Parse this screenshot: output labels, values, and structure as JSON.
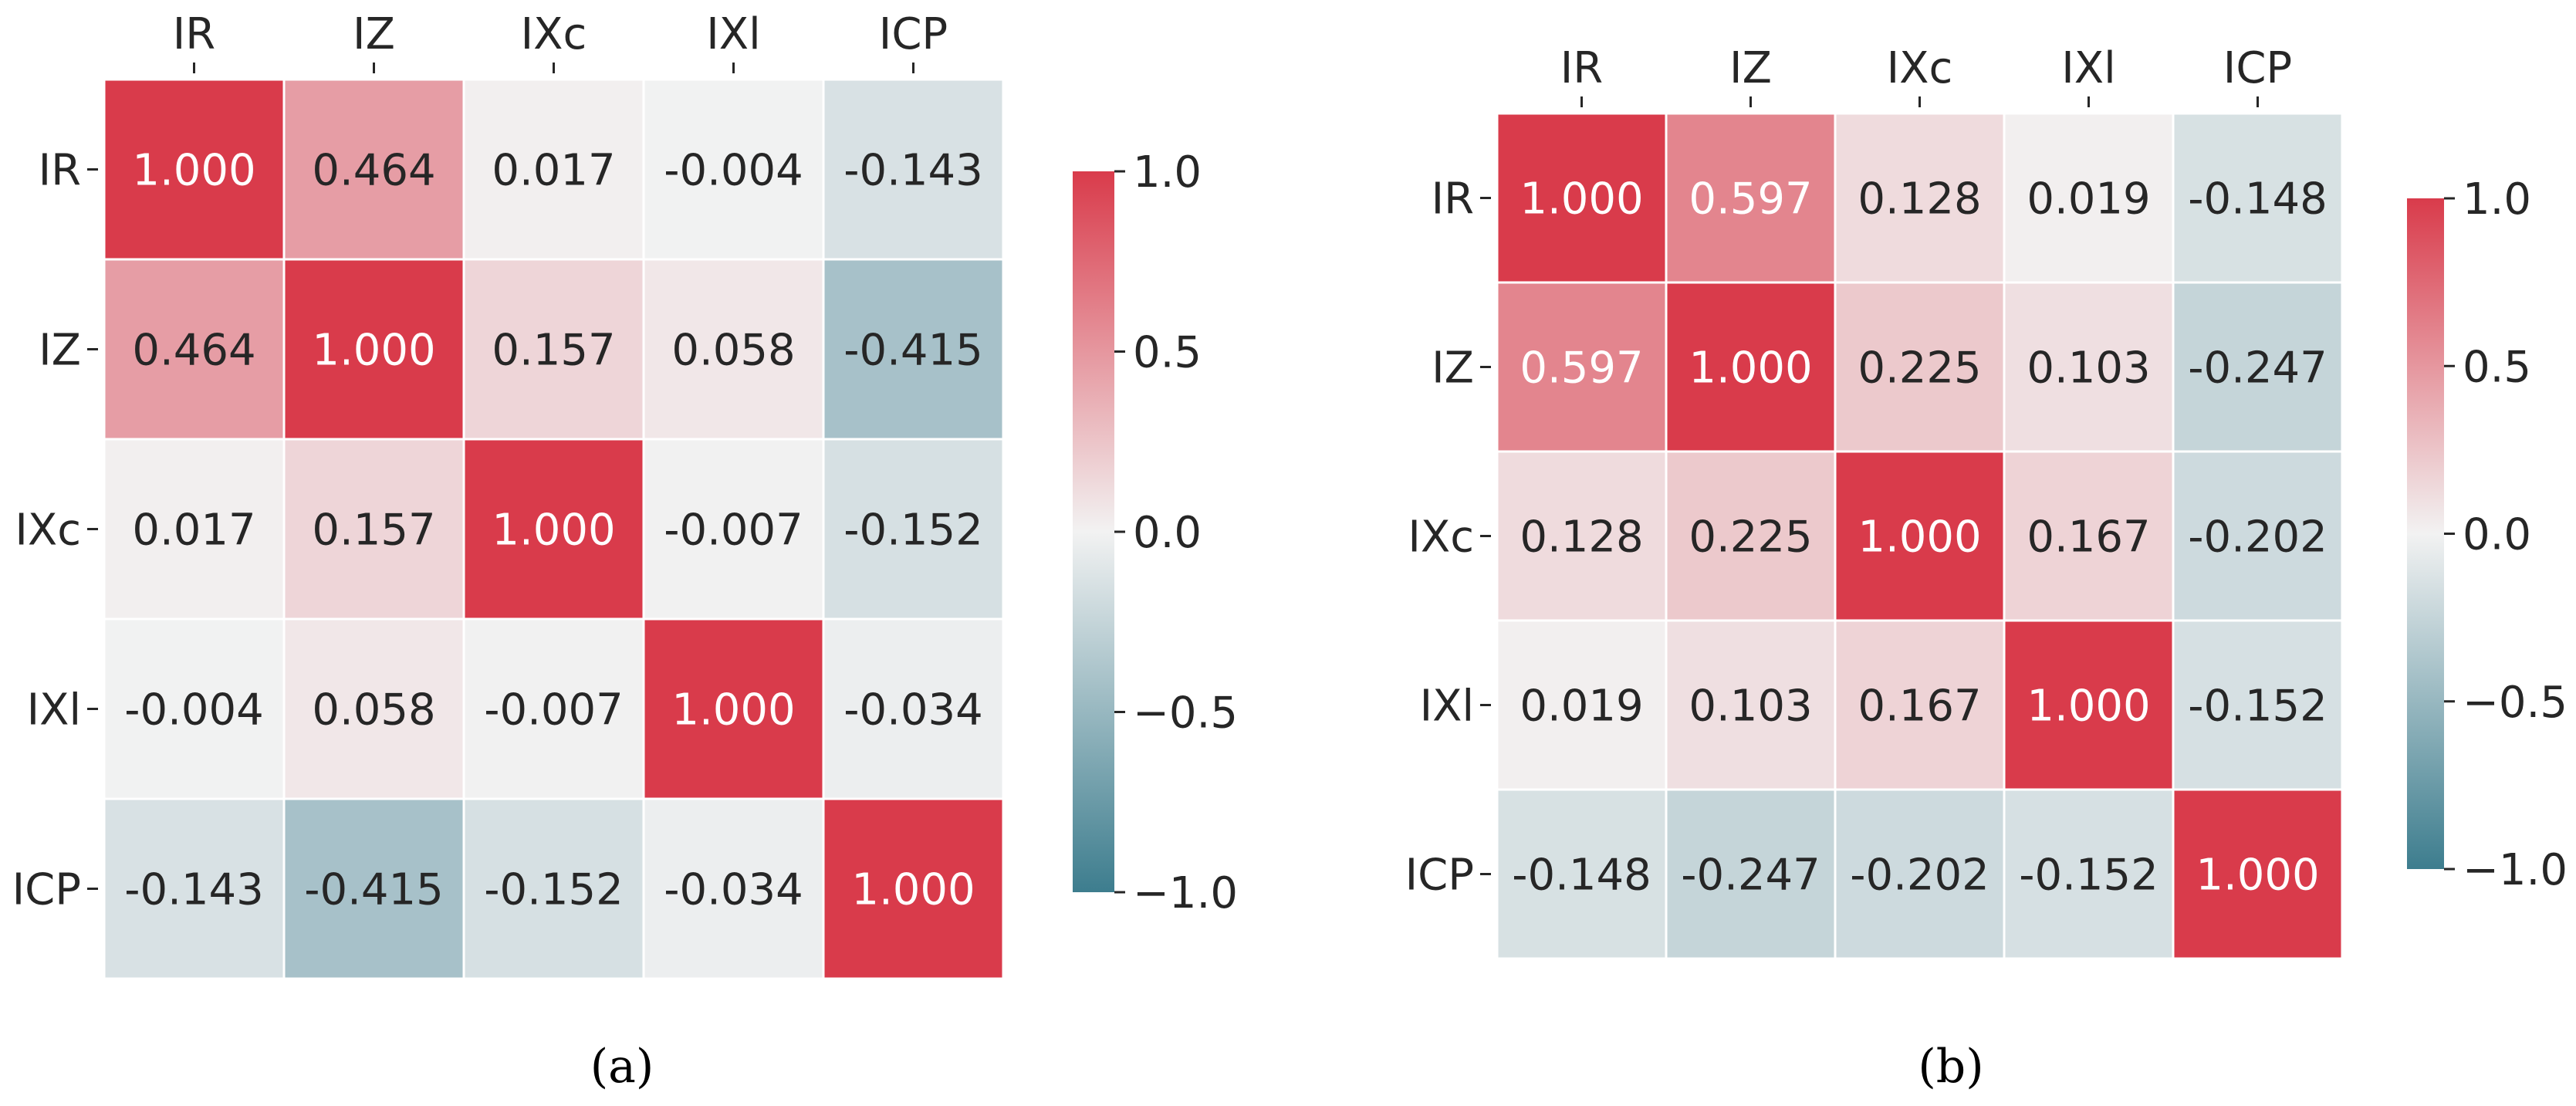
{
  "colormap": {
    "low": "#3d7d8e",
    "mid": "#f2f2f2",
    "high": "#d93b4b",
    "cell_border": "#ffffff",
    "text_dark": "#262626",
    "text_light": "#ffffff"
  },
  "chart_data": [
    {
      "type": "heatmap",
      "panel_label": "(a)",
      "x_categories": [
        "IR",
        "IZ",
        "IXc",
        "IXl",
        "ICP"
      ],
      "y_categories": [
        "IR",
        "IZ",
        "IXc",
        "IXl",
        "ICP"
      ],
      "values": [
        [
          1.0,
          0.464,
          0.017,
          -0.004,
          -0.143
        ],
        [
          0.464,
          1.0,
          0.157,
          0.058,
          -0.415
        ],
        [
          0.017,
          0.157,
          1.0,
          -0.007,
          -0.152
        ],
        [
          -0.004,
          0.058,
          -0.007,
          1.0,
          -0.034
        ],
        [
          -0.143,
          -0.415,
          -0.152,
          -0.034,
          1.0
        ]
      ],
      "value_labels": [
        [
          "1.000",
          "0.464",
          "0.017",
          "-0.004",
          "-0.143"
        ],
        [
          "0.464",
          "1.000",
          "0.157",
          "0.058",
          "-0.415"
        ],
        [
          "0.017",
          "0.157",
          "1.000",
          "-0.007",
          "-0.152"
        ],
        [
          "-0.004",
          "0.058",
          "-0.007",
          "1.000",
          "-0.034"
        ],
        [
          "-0.143",
          "-0.415",
          "-0.152",
          "-0.034",
          "1.000"
        ]
      ],
      "colorbar": {
        "range": [
          -1.0,
          1.0
        ],
        "ticks": [
          1.0,
          0.5,
          0.0,
          -0.5,
          -1.0
        ],
        "tick_labels": [
          "1.0",
          "0.5",
          "0.0",
          "−0.5",
          "−1.0"
        ]
      },
      "x_axis_position": "top",
      "grid": false,
      "legend": "colorbar-right"
    },
    {
      "type": "heatmap",
      "panel_label": "(b)",
      "x_categories": [
        "IR",
        "IZ",
        "IXc",
        "IXl",
        "ICP"
      ],
      "y_categories": [
        "IR",
        "IZ",
        "IXc",
        "IXl",
        "ICP"
      ],
      "values": [
        [
          1.0,
          0.597,
          0.128,
          0.019,
          -0.148
        ],
        [
          0.597,
          1.0,
          0.225,
          0.103,
          -0.247
        ],
        [
          0.128,
          0.225,
          1.0,
          0.167,
          -0.202
        ],
        [
          0.019,
          0.103,
          0.167,
          1.0,
          -0.152
        ],
        [
          -0.148,
          -0.247,
          -0.202,
          -0.152,
          1.0
        ]
      ],
      "value_labels": [
        [
          "1.000",
          "0.597",
          "0.128",
          "0.019",
          "-0.148"
        ],
        [
          "0.597",
          "1.000",
          "0.225",
          "0.103",
          "-0.247"
        ],
        [
          "0.128",
          "0.225",
          "1.000",
          "0.167",
          "-0.202"
        ],
        [
          "0.019",
          "0.103",
          "0.167",
          "1.000",
          "-0.152"
        ],
        [
          "-0.148",
          "-0.247",
          "-0.202",
          "-0.152",
          "1.000"
        ]
      ],
      "colorbar": {
        "range": [
          -1.0,
          1.0
        ],
        "ticks": [
          1.0,
          0.5,
          0.0,
          -0.5,
          -1.0
        ],
        "tick_labels": [
          "1.0",
          "0.5",
          "0.0",
          "−0.5",
          "−1.0"
        ]
      },
      "x_axis_position": "top",
      "grid": false,
      "legend": "colorbar-right"
    }
  ]
}
